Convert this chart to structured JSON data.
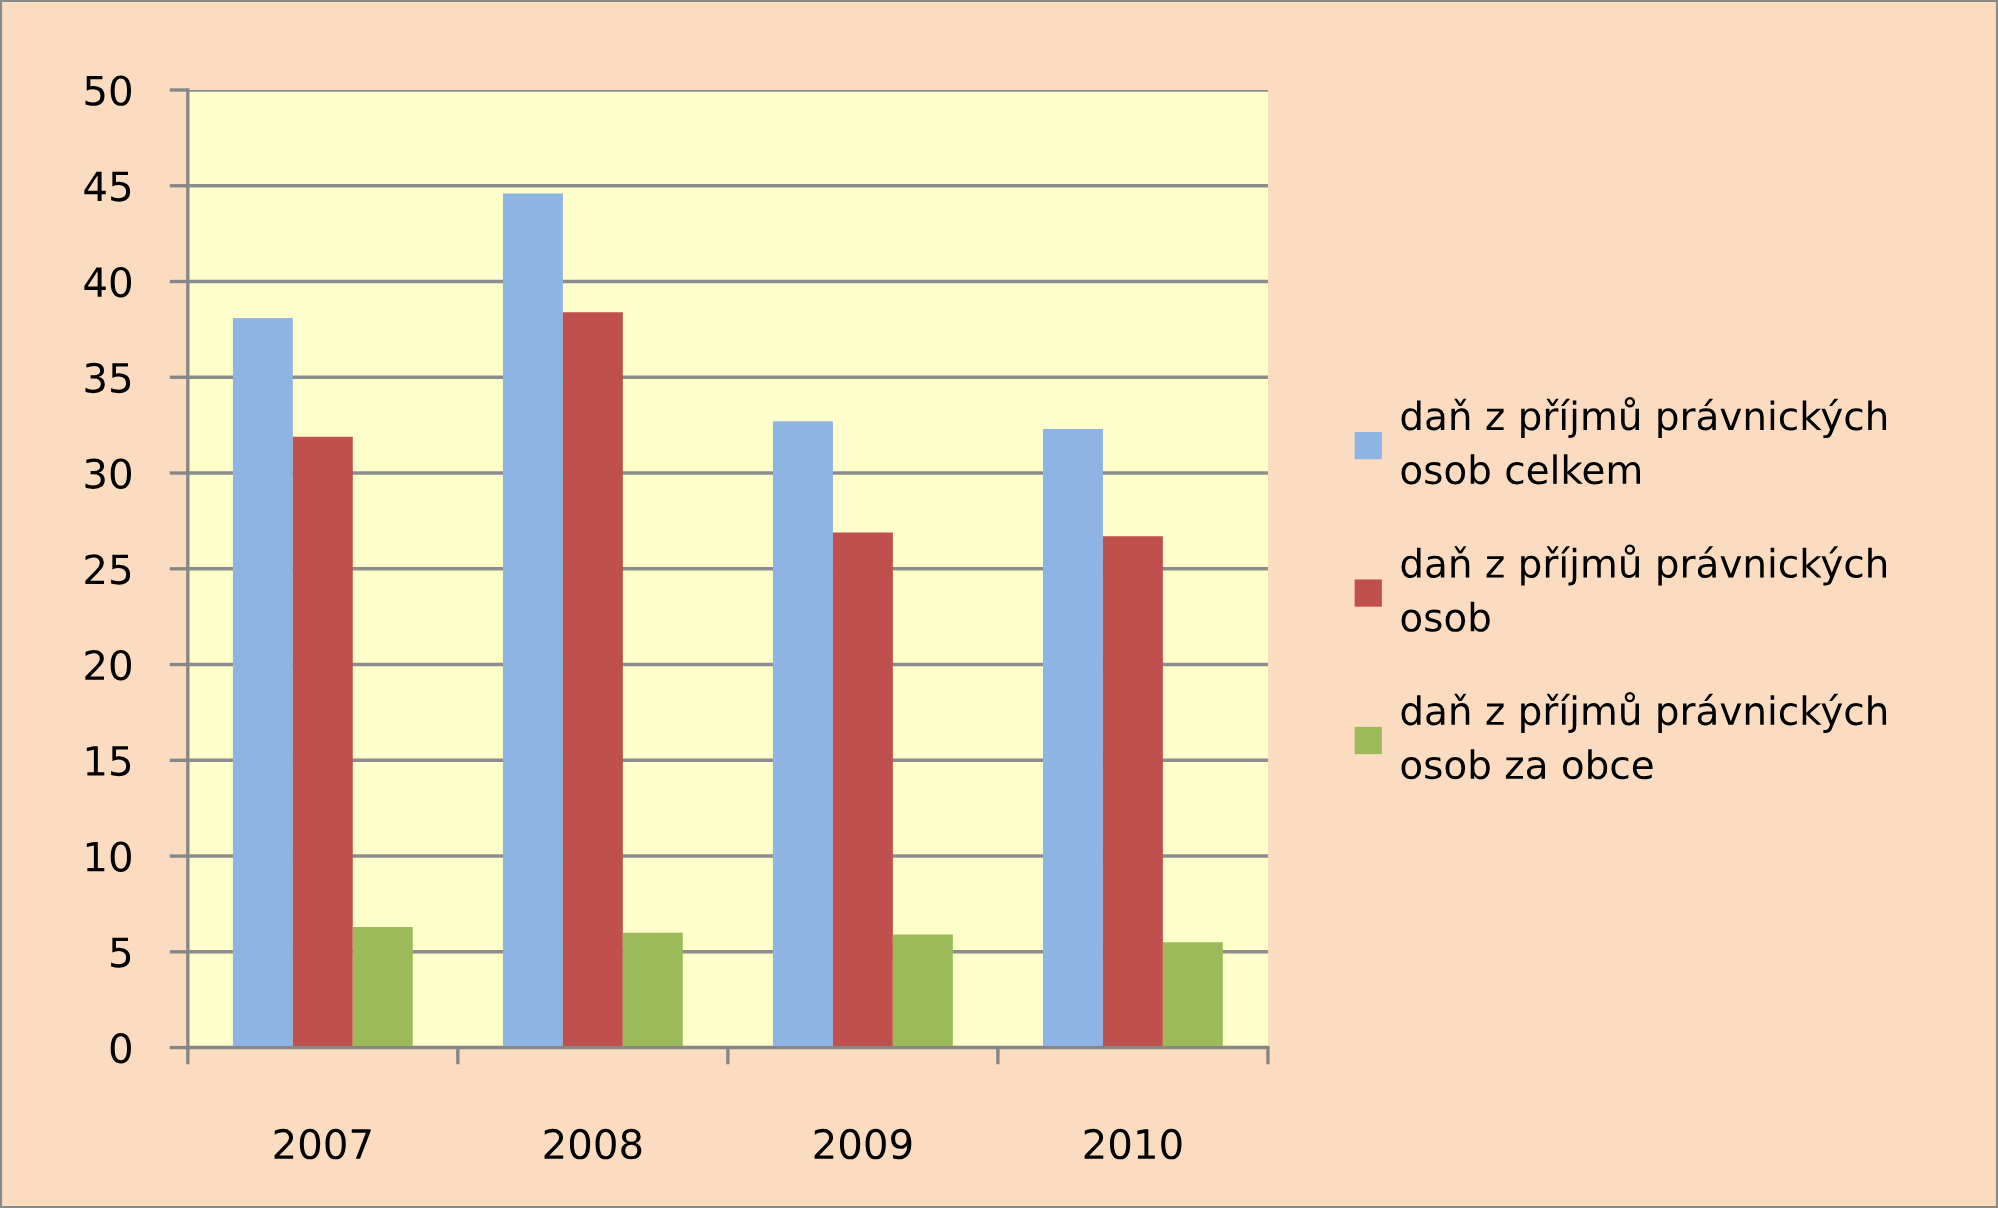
{
  "chart_data": {
    "type": "bar",
    "categories": [
      "2007",
      "2008",
      "2009",
      "2010"
    ],
    "series": [
      {
        "name": "daň z příjmů právnických osob celkem",
        "color": "#8eb4e3",
        "values": [
          38.1,
          44.6,
          32.7,
          32.3
        ]
      },
      {
        "name": "daň z příjmů právnických osob",
        "color": "#c0504d",
        "values": [
          31.9,
          38.4,
          26.9,
          26.7
        ]
      },
      {
        "name": "daň z příjmů právnických osob za obce",
        "color": "#9bbb59",
        "values": [
          6.3,
          6.0,
          5.9,
          5.5
        ]
      }
    ],
    "ylim": [
      0,
      50
    ],
    "yticks": [
      0,
      5,
      10,
      15,
      20,
      25,
      30,
      35,
      40,
      45,
      50
    ],
    "grid": "y",
    "legend": "right"
  }
}
